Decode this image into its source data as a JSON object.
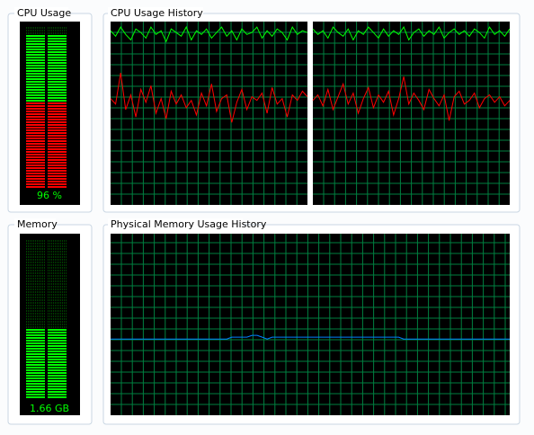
{
  "cpu_usage": {
    "title": "CPU Usage",
    "value_label": "96 %",
    "percent": 96,
    "kernel_percent": 53
  },
  "cpu_history": {
    "title": "CPU Usage History",
    "graphs": [
      {
        "total": [
          95,
          92,
          97,
          93,
          90,
          96,
          94,
          91,
          97,
          93,
          95,
          89,
          96,
          94,
          92,
          97,
          90,
          95,
          93,
          96,
          91,
          94,
          97,
          92,
          95,
          90,
          96,
          93,
          94,
          97,
          91,
          95,
          92,
          96,
          94,
          90,
          97,
          93,
          95,
          94
        ],
        "kernel": [
          58,
          55,
          72,
          52,
          60,
          48,
          63,
          56,
          65,
          50,
          58,
          47,
          62,
          55,
          60,
          53,
          57,
          49,
          61,
          54,
          66,
          51,
          58,
          60,
          45,
          56,
          63,
          52,
          59,
          57,
          61,
          50,
          64,
          55,
          58,
          48,
          60,
          57,
          62,
          59
        ]
      },
      {
        "total": [
          96,
          93,
          95,
          91,
          97,
          94,
          92,
          96,
          90,
          95,
          93,
          97,
          94,
          91,
          96,
          92,
          95,
          93,
          97,
          90,
          94,
          96,
          92,
          95,
          93,
          97,
          91,
          94,
          96,
          93,
          95,
          92,
          96,
          94,
          91,
          97,
          93,
          95,
          92,
          96
        ],
        "kernel": [
          57,
          60,
          54,
          63,
          52,
          59,
          66,
          55,
          61,
          50,
          58,
          64,
          53,
          60,
          56,
          62,
          49,
          58,
          70,
          55,
          61,
          57,
          52,
          63,
          58,
          54,
          60,
          46,
          59,
          62,
          55,
          57,
          61,
          53,
          58,
          60,
          56,
          59,
          54,
          57
        ]
      }
    ]
  },
  "memory": {
    "title": "Memory",
    "value_label": "1.66 GB",
    "percent": 44
  },
  "memory_history": {
    "title": "Physical Memory Usage History",
    "values": [
      42,
      42,
      42,
      42,
      42,
      42,
      42,
      42,
      42,
      42,
      42,
      42,
      42,
      42,
      42,
      42,
      42,
      42,
      42,
      42,
      42,
      42,
      42,
      42,
      43,
      43,
      43,
      43,
      44,
      44,
      43,
      42,
      43,
      43,
      43,
      43,
      43,
      43,
      43,
      43,
      43,
      43,
      43,
      43,
      43,
      43,
      43,
      43,
      43,
      43,
      43,
      43,
      43,
      43,
      43,
      43,
      43,
      43,
      42,
      42,
      42,
      42,
      42,
      42,
      42,
      42,
      42,
      42,
      42,
      42,
      42,
      42,
      42,
      42,
      42,
      42,
      42,
      42,
      42,
      42
    ]
  }
}
